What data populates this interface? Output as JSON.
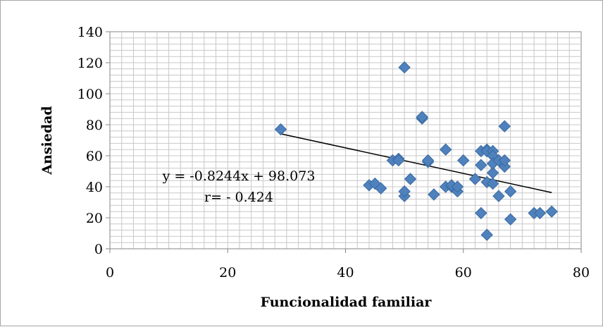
{
  "chart_data": {
    "type": "scatter",
    "title": "",
    "xlabel": "Funcionalidad familiar",
    "ylabel": "Ansiedad",
    "xlim": [
      0,
      80
    ],
    "ylim": [
      0,
      140
    ],
    "x_ticks": [
      "0",
      "20",
      "40",
      "60",
      "80"
    ],
    "y_ticks": [
      "0",
      "20",
      "40",
      "60",
      "80",
      "100",
      "120",
      "140"
    ],
    "grid": true,
    "legend": "none",
    "marker_color": "#4f81bd",
    "marker_edge_color": "#3a6aa0",
    "trendline_color": "#000000",
    "series": [
      {
        "points": [
          [
            29,
            77
          ],
          [
            44,
            41
          ],
          [
            45,
            42
          ],
          [
            46,
            39
          ],
          [
            48,
            57
          ],
          [
            49,
            58
          ],
          [
            49,
            57
          ],
          [
            50,
            117
          ],
          [
            50,
            34
          ],
          [
            50,
            37
          ],
          [
            51,
            45
          ],
          [
            53,
            84
          ],
          [
            53,
            85
          ],
          [
            54,
            56
          ],
          [
            54,
            57
          ],
          [
            55,
            35
          ],
          [
            57,
            64
          ],
          [
            57,
            40
          ],
          [
            58,
            40
          ],
          [
            58,
            41
          ],
          [
            59,
            37
          ],
          [
            59,
            40
          ],
          [
            60,
            57
          ],
          [
            62,
            45
          ],
          [
            63,
            63
          ],
          [
            63,
            54
          ],
          [
            63,
            23
          ],
          [
            64,
            64
          ],
          [
            64,
            63
          ],
          [
            64,
            43
          ],
          [
            64,
            9
          ],
          [
            65,
            63
          ],
          [
            65,
            60
          ],
          [
            65,
            49
          ],
          [
            65,
            42
          ],
          [
            65,
            55
          ],
          [
            66,
            57
          ],
          [
            66,
            34
          ],
          [
            67,
            53
          ],
          [
            67,
            57
          ],
          [
            67,
            79
          ],
          [
            68,
            37
          ],
          [
            68,
            19
          ],
          [
            72,
            23
          ],
          [
            73,
            23
          ],
          [
            75,
            24
          ]
        ]
      }
    ],
    "trendline": {
      "slope": -0.8244,
      "intercept": 98.073,
      "x_range": [
        29,
        75
      ],
      "equation_text": "y = -0.8244x + 98.073",
      "r_text": "r= - 0.424"
    }
  }
}
